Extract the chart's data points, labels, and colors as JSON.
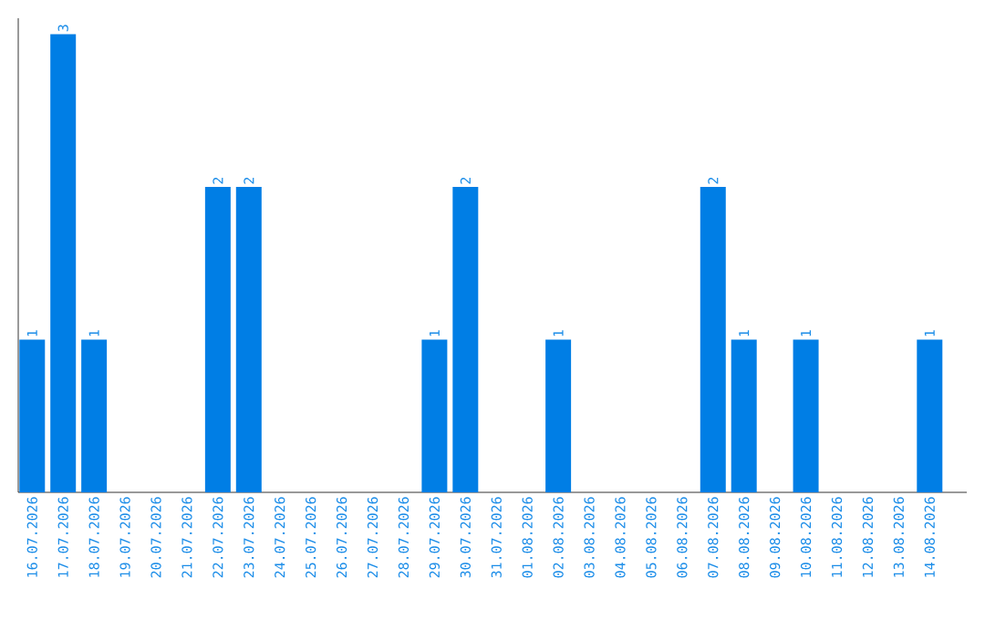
{
  "chart_data": {
    "type": "bar",
    "categories": [
      "16.07.2026",
      "17.07.2026",
      "18.07.2026",
      "19.07.2026",
      "20.07.2026",
      "21.07.2026",
      "22.07.2026",
      "23.07.2026",
      "24.07.2026",
      "25.07.2026",
      "26.07.2026",
      "27.07.2026",
      "28.07.2026",
      "29.07.2026",
      "30.07.2026",
      "31.07.2026",
      "01.08.2026",
      "02.08.2026",
      "03.08.2026",
      "04.08.2026",
      "05.08.2026",
      "06.08.2026",
      "07.08.2026",
      "08.08.2026",
      "09.08.2026",
      "10.08.2026",
      "11.08.2026",
      "12.08.2026",
      "13.08.2026",
      "14.08.2026"
    ],
    "values": [
      1,
      3,
      1,
      0,
      0,
      0,
      2,
      2,
      0,
      0,
      0,
      0,
      0,
      1,
      2,
      0,
      0,
      1,
      0,
      0,
      0,
      0,
      2,
      1,
      0,
      1,
      0,
      0,
      0,
      1
    ],
    "value_labels": [
      "1",
      "3",
      "1",
      null,
      null,
      null,
      "2",
      "2",
      null,
      null,
      null,
      null,
      null,
      "1",
      "2",
      null,
      null,
      "1",
      null,
      null,
      null,
      null,
      "2",
      "1",
      null,
      "1",
      null,
      null,
      null,
      "1"
    ],
    "color": "#007ee5"
  }
}
